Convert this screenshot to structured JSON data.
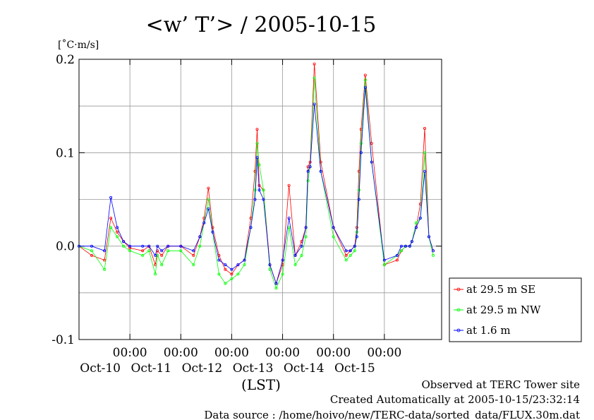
{
  "chart_data": {
    "type": "line",
    "title": "<w’ T’> / 2005-10-15",
    "ylabel": "[˚C·m/s]",
    "xlabel": "(LST)",
    "ylim": [
      -0.1,
      0.2
    ],
    "xlim": [
      "2005-10-09T00:00",
      "2005-10-16T03:00"
    ],
    "yticks": [
      "-0.1",
      "0.0",
      "0.1",
      "0.2"
    ],
    "xticks": [
      {
        "t": "2005-10-10T00:00",
        "time": "00:00",
        "date": "Oct-10"
      },
      {
        "t": "2005-10-11T00:00",
        "time": "00:00",
        "date": "Oct-11"
      },
      {
        "t": "2005-10-12T00:00",
        "time": "00:00",
        "date": "Oct-12"
      },
      {
        "t": "2005-10-13T00:00",
        "time": "00:00",
        "date": "Oct-13"
      },
      {
        "t": "2005-10-14T00:00",
        "time": "00:00",
        "date": "Oct-14"
      },
      {
        "t": "2005-10-15T00:00",
        "time": "00:00",
        "date": "Oct-15"
      }
    ],
    "grid": true,
    "legend_position": "right",
    "series": [
      {
        "name": "at 29.5 m SE",
        "color": "#ff0000",
        "x": [
          "2005-10-09T00:00",
          "2005-10-09T06:00",
          "2005-10-09T12:00",
          "2005-10-09T15:00",
          "2005-10-09T18:00",
          "2005-10-09T21:00",
          "2005-10-10T00:00",
          "2005-10-10T06:00",
          "2005-10-10T09:00",
          "2005-10-10T12:00",
          "2005-10-10T13:00",
          "2005-10-10T15:00",
          "2005-10-10T18:00",
          "2005-10-11T00:00",
          "2005-10-11T06:00",
          "2005-10-11T09:00",
          "2005-10-11T11:00",
          "2005-10-11T13:00",
          "2005-10-11T15:00",
          "2005-10-11T18:00",
          "2005-10-11T21:00",
          "2005-10-12T00:00",
          "2005-10-12T03:00",
          "2005-10-12T06:00",
          "2005-10-12T09:00",
          "2005-10-12T11:00",
          "2005-10-12T12:00",
          "2005-10-12T13:00",
          "2005-10-12T15:00",
          "2005-10-12T18:00",
          "2005-10-12T21:00",
          "2005-10-13T00:00",
          "2005-10-13T03:00",
          "2005-10-13T06:00",
          "2005-10-13T09:00",
          "2005-10-13T11:00",
          "2005-10-13T12:00",
          "2005-10-13T13:00",
          "2005-10-13T15:00",
          "2005-10-13T18:00",
          "2005-10-14T00:00",
          "2005-10-14T06:00",
          "2005-10-14T08:00",
          "2005-10-14T10:00",
          "2005-10-14T11:00",
          "2005-10-14T12:00",
          "2005-10-14T13:00",
          "2005-10-14T15:00",
          "2005-10-14T18:00",
          "2005-10-15T00:00",
          "2005-10-15T06:00",
          "2005-10-15T08:00",
          "2005-10-15T10:00",
          "2005-10-15T12:00",
          "2005-10-15T13:00",
          "2005-10-15T15:00",
          "2005-10-15T17:00",
          "2005-10-15T19:00",
          "2005-10-15T21:00",
          "2005-10-15T23:00"
        ],
        "y": [
          0.0,
          -0.01,
          -0.015,
          0.03,
          0.015,
          0.005,
          -0.002,
          -0.005,
          0.0,
          -0.02,
          -0.005,
          -0.01,
          0.0,
          0.0,
          -0.01,
          0.01,
          0.03,
          0.062,
          0.02,
          -0.01,
          -0.025,
          -0.03,
          -0.02,
          -0.015,
          0.03,
          0.08,
          0.125,
          0.065,
          0.06,
          -0.02,
          -0.04,
          -0.02,
          0.065,
          -0.01,
          0.005,
          0.02,
          0.085,
          0.09,
          0.195,
          0.09,
          0.02,
          -0.01,
          -0.005,
          0.0,
          0.02,
          0.08,
          0.125,
          0.183,
          0.11,
          -0.02,
          -0.015,
          -0.005,
          0.0,
          0.0,
          0.005,
          0.02,
          0.045,
          0.126,
          0.01,
          -0.005
        ]
      },
      {
        "name": "at 29.5 m NW",
        "color": "#00ff00",
        "x": [
          "2005-10-09T00:00",
          "2005-10-09T06:00",
          "2005-10-09T12:00",
          "2005-10-09T15:00",
          "2005-10-09T18:00",
          "2005-10-09T21:00",
          "2005-10-10T00:00",
          "2005-10-10T06:00",
          "2005-10-10T09:00",
          "2005-10-10T12:00",
          "2005-10-10T13:00",
          "2005-10-10T15:00",
          "2005-10-10T18:00",
          "2005-10-11T00:00",
          "2005-10-11T06:00",
          "2005-10-11T09:00",
          "2005-10-11T11:00",
          "2005-10-11T13:00",
          "2005-10-11T15:00",
          "2005-10-11T18:00",
          "2005-10-11T21:00",
          "2005-10-12T00:00",
          "2005-10-12T03:00",
          "2005-10-12T06:00",
          "2005-10-12T09:00",
          "2005-10-12T11:00",
          "2005-10-12T12:00",
          "2005-10-12T13:00",
          "2005-10-12T15:00",
          "2005-10-12T18:00",
          "2005-10-12T21:00",
          "2005-10-13T00:00",
          "2005-10-13T03:00",
          "2005-10-13T06:00",
          "2005-10-13T09:00",
          "2005-10-13T11:00",
          "2005-10-13T12:00",
          "2005-10-13T13:00",
          "2005-10-13T15:00",
          "2005-10-13T18:00",
          "2005-10-14T00:00",
          "2005-10-14T06:00",
          "2005-10-14T08:00",
          "2005-10-14T10:00",
          "2005-10-14T11:00",
          "2005-10-14T12:00",
          "2005-10-14T13:00",
          "2005-10-14T15:00",
          "2005-10-14T18:00",
          "2005-10-15T00:00",
          "2005-10-15T06:00",
          "2005-10-15T08:00",
          "2005-10-15T10:00",
          "2005-10-15T12:00",
          "2005-10-15T13:00",
          "2005-10-15T15:00",
          "2005-10-15T17:00",
          "2005-10-15T19:00",
          "2005-10-15T21:00",
          "2005-10-15T23:00"
        ],
        "y": [
          0.0,
          -0.005,
          -0.025,
          0.02,
          0.01,
          0.0,
          -0.005,
          -0.01,
          -0.005,
          -0.03,
          -0.01,
          -0.02,
          -0.005,
          -0.005,
          -0.02,
          0.0,
          0.025,
          0.05,
          0.015,
          -0.03,
          -0.04,
          -0.035,
          -0.03,
          -0.02,
          0.02,
          0.06,
          0.11,
          0.087,
          0.06,
          -0.025,
          -0.045,
          -0.03,
          0.02,
          -0.02,
          -0.01,
          0.01,
          0.07,
          0.085,
          0.18,
          0.08,
          0.01,
          -0.015,
          -0.01,
          -0.005,
          0.015,
          0.06,
          0.11,
          0.178,
          0.09,
          -0.02,
          -0.01,
          -0.005,
          0.0,
          0.0,
          0.005,
          0.025,
          0.03,
          0.1,
          0.01,
          -0.01
        ]
      },
      {
        "name": "at 1.6 m",
        "color": "#0000ff",
        "x": [
          "2005-10-09T00:00",
          "2005-10-09T06:00",
          "2005-10-09T12:00",
          "2005-10-09T15:00",
          "2005-10-09T18:00",
          "2005-10-09T21:00",
          "2005-10-10T00:00",
          "2005-10-10T06:00",
          "2005-10-10T09:00",
          "2005-10-10T12:00",
          "2005-10-10T13:00",
          "2005-10-10T15:00",
          "2005-10-10T18:00",
          "2005-10-11T00:00",
          "2005-10-11T06:00",
          "2005-10-11T09:00",
          "2005-10-11T11:00",
          "2005-10-11T13:00",
          "2005-10-11T15:00",
          "2005-10-11T18:00",
          "2005-10-11T21:00",
          "2005-10-12T00:00",
          "2005-10-12T03:00",
          "2005-10-12T06:00",
          "2005-10-12T09:00",
          "2005-10-12T11:00",
          "2005-10-12T12:00",
          "2005-10-12T13:00",
          "2005-10-12T15:00",
          "2005-10-12T18:00",
          "2005-10-12T21:00",
          "2005-10-13T00:00",
          "2005-10-13T03:00",
          "2005-10-13T06:00",
          "2005-10-13T09:00",
          "2005-10-13T11:00",
          "2005-10-13T12:00",
          "2005-10-13T13:00",
          "2005-10-13T15:00",
          "2005-10-13T18:00",
          "2005-10-14T00:00",
          "2005-10-14T06:00",
          "2005-10-14T08:00",
          "2005-10-14T10:00",
          "2005-10-14T11:00",
          "2005-10-14T12:00",
          "2005-10-14T13:00",
          "2005-10-14T15:00",
          "2005-10-14T18:00",
          "2005-10-15T00:00",
          "2005-10-15T06:00",
          "2005-10-15T08:00",
          "2005-10-15T10:00",
          "2005-10-15T12:00",
          "2005-10-15T13:00",
          "2005-10-15T15:00",
          "2005-10-15T17:00",
          "2005-10-15T19:00",
          "2005-10-15T21:00",
          "2005-10-15T23:00"
        ],
        "y": [
          0.0,
          0.0,
          -0.005,
          0.052,
          0.02,
          0.005,
          0.0,
          0.0,
          0.0,
          -0.01,
          0.0,
          -0.005,
          0.0,
          0.0,
          -0.005,
          0.01,
          0.025,
          0.04,
          0.015,
          -0.015,
          -0.02,
          -0.025,
          -0.02,
          -0.015,
          0.02,
          0.05,
          0.095,
          0.06,
          0.05,
          -0.02,
          -0.04,
          -0.015,
          0.03,
          -0.01,
          0.0,
          0.02,
          0.08,
          0.085,
          0.152,
          0.08,
          0.02,
          -0.005,
          -0.005,
          0.0,
          0.01,
          0.05,
          0.1,
          0.17,
          0.09,
          -0.015,
          -0.01,
          0.0,
          0.0,
          0.0,
          0.005,
          0.02,
          0.03,
          0.08,
          0.01,
          -0.005
        ]
      }
    ]
  },
  "footer": {
    "line1": "Observed at TERC Tower site",
    "line2": "Created Automatically at 2005-10-15/23:32:14",
    "line3": "Data source : /home/hoivo/new/TERC-data/sorted_data/FLUX.30m.dat"
  }
}
